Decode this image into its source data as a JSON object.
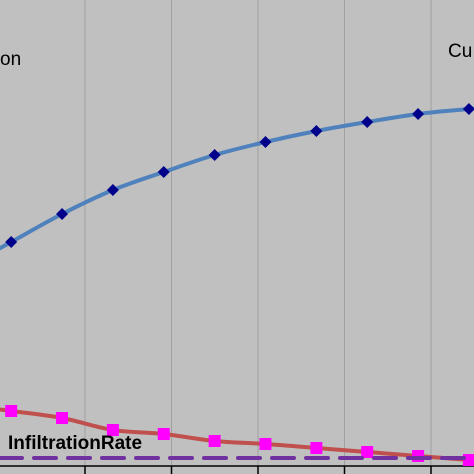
{
  "chart_data": {
    "type": "line",
    "title": "",
    "xlabel": "",
    "ylabel": "",
    "grid": true,
    "annotations": {
      "left_label": "on",
      "right_label": "Cu",
      "bottom_label": "InfiltrationRate"
    },
    "x": [
      0,
      1,
      2,
      3,
      4,
      5,
      6,
      7,
      8,
      9
    ],
    "series": [
      {
        "name": "",
        "color": "#4f81bd",
        "marker": "diamond",
        "marker_color": "#00008b",
        "values": [
          242,
          214,
          190,
          172,
          155,
          142,
          131,
          122,
          114,
          109
        ]
      },
      {
        "name": "",
        "color": "#c0504d",
        "marker": "square",
        "marker_color": "#ff00ff",
        "values": [
          411,
          418,
          430,
          434,
          441,
          444,
          448,
          452,
          456,
          460
        ]
      },
      {
        "name": "",
        "color": "#7030a0",
        "line_style": "dashed",
        "values": [
          458,
          458,
          458,
          458,
          458,
          458,
          458,
          458,
          458,
          458
        ]
      }
    ],
    "ylim": [
      474,
      0
    ]
  }
}
